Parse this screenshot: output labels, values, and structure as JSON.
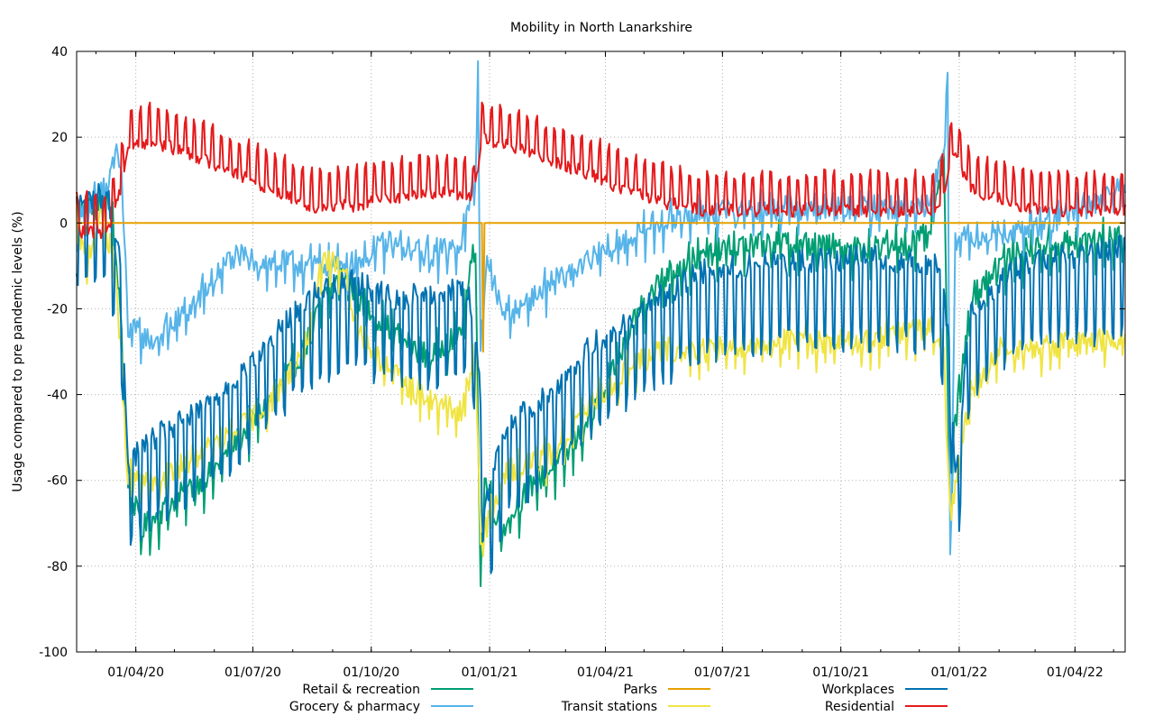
{
  "chart_data": {
    "type": "line",
    "title": "Mobility in North Lanarkshire",
    "xlabel": "",
    "ylabel": "Usage compared to pre pandemic levels (%)",
    "x_start": "2020-02-15",
    "x_end": "2022-05-10",
    "xlim": [
      "2020-02-15",
      "2022-05-10"
    ],
    "ylim": [
      -100,
      40
    ],
    "y_ticks": [
      -100,
      -80,
      -60,
      -40,
      -20,
      0,
      20,
      40
    ],
    "x_ticks": [
      {
        "date": "2020-04-01",
        "label": "01/04/20"
      },
      {
        "date": "2020-07-01",
        "label": "01/07/20"
      },
      {
        "date": "2020-10-01",
        "label": "01/10/20"
      },
      {
        "date": "2021-01-01",
        "label": "01/01/21"
      },
      {
        "date": "2021-04-01",
        "label": "01/04/21"
      },
      {
        "date": "2021-07-01",
        "label": "01/07/21"
      },
      {
        "date": "2021-10-01",
        "label": "01/10/21"
      },
      {
        "date": "2022-01-01",
        "label": "01/01/22"
      },
      {
        "date": "2022-04-01",
        "label": "01/04/22"
      }
    ],
    "grid": true,
    "legend_position": "bottom",
    "series": [
      {
        "name": "Retail & recreation",
        "color": "#009e73",
        "weekly_amplitude": 5,
        "noise": 3,
        "anchors": [
          [
            "2020-02-15",
            2
          ],
          [
            "2020-03-08",
            6
          ],
          [
            "2020-03-14",
            0
          ],
          [
            "2020-03-20",
            -20
          ],
          [
            "2020-03-26",
            -60
          ],
          [
            "2020-04-05",
            -72
          ],
          [
            "2020-05-01",
            -65
          ],
          [
            "2020-06-01",
            -58
          ],
          [
            "2020-06-22",
            -50
          ],
          [
            "2020-07-15",
            -42
          ],
          [
            "2020-08-10",
            -30
          ],
          [
            "2020-08-25",
            -18
          ],
          [
            "2020-09-10",
            -12
          ],
          [
            "2020-09-25",
            -20
          ],
          [
            "2020-10-15",
            -25
          ],
          [
            "2020-11-15",
            -32
          ],
          [
            "2020-12-10",
            -25
          ],
          [
            "2020-12-21",
            -5
          ],
          [
            "2020-12-25",
            -85
          ],
          [
            "2020-12-28",
            -60
          ],
          [
            "2021-01-10",
            -72
          ],
          [
            "2021-02-01",
            -62
          ],
          [
            "2021-03-01",
            -55
          ],
          [
            "2021-04-01",
            -40
          ],
          [
            "2021-04-27",
            -20
          ],
          [
            "2021-05-20",
            -12
          ],
          [
            "2021-06-15",
            -8
          ],
          [
            "2021-07-10",
            -6
          ],
          [
            "2021-08-10",
            -5
          ],
          [
            "2021-09-15",
            -6
          ],
          [
            "2021-11-01",
            -6
          ],
          [
            "2021-12-08",
            -4
          ],
          [
            "2021-12-16",
            8
          ],
          [
            "2021-12-20",
            15
          ],
          [
            "2021-12-25",
            -70
          ],
          [
            "2021-12-28",
            -50
          ],
          [
            "2022-01-10",
            -18
          ],
          [
            "2022-02-01",
            -10
          ],
          [
            "2022-03-01",
            -6
          ],
          [
            "2022-04-01",
            -5
          ],
          [
            "2022-05-10",
            -4
          ]
        ]
      },
      {
        "name": "Grocery & pharmacy",
        "color": "#56b4e9",
        "weekly_amplitude": 4,
        "noise": 3,
        "anchors": [
          [
            "2020-02-15",
            0
          ],
          [
            "2020-03-10",
            8
          ],
          [
            "2020-03-17",
            18
          ],
          [
            "2020-03-22",
            5
          ],
          [
            "2020-03-26",
            -25
          ],
          [
            "2020-04-15",
            -28
          ],
          [
            "2020-05-15",
            -20
          ],
          [
            "2020-06-15",
            -8
          ],
          [
            "2020-07-15",
            -10
          ],
          [
            "2020-08-15",
            -10
          ],
          [
            "2020-09-15",
            -10
          ],
          [
            "2020-10-15",
            -5
          ],
          [
            "2020-11-15",
            -8
          ],
          [
            "2020-12-10",
            -5
          ],
          [
            "2020-12-21",
            10
          ],
          [
            "2020-12-23",
            35
          ],
          [
            "2020-12-25",
            -30
          ],
          [
            "2020-12-29",
            -10
          ],
          [
            "2021-01-15",
            -22
          ],
          [
            "2021-02-15",
            -15
          ],
          [
            "2021-03-15",
            -10
          ],
          [
            "2021-04-15",
            -5
          ],
          [
            "2021-05-15",
            0
          ],
          [
            "2021-06-15",
            2
          ],
          [
            "2021-08-15",
            3
          ],
          [
            "2021-10-15",
            3
          ],
          [
            "2021-12-10",
            4
          ],
          [
            "2021-12-21",
            20
          ],
          [
            "2021-12-23",
            36
          ],
          [
            "2021-12-25",
            -80
          ],
          [
            "2021-12-29",
            -5
          ],
          [
            "2022-01-15",
            -3
          ],
          [
            "2022-02-15",
            -2
          ],
          [
            "2022-03-15",
            0
          ],
          [
            "2022-04-15",
            5
          ],
          [
            "2022-05-10",
            8
          ]
        ]
      },
      {
        "name": "Parks",
        "color": "#e69f00",
        "weekly_amplitude": 0,
        "noise": 0,
        "anchors": [
          [
            "2020-02-15",
            0
          ],
          [
            "2020-12-26",
            0
          ],
          [
            "2020-12-27",
            -30
          ],
          [
            "2020-12-28",
            0
          ],
          [
            "2022-05-10",
            0
          ]
        ]
      },
      {
        "name": "Transit stations",
        "color": "#f0e442",
        "weekly_amplitude": 4,
        "noise": 3,
        "anchors": [
          [
            "2020-02-15",
            0
          ],
          [
            "2020-02-22",
            -10
          ],
          [
            "2020-03-05",
            2
          ],
          [
            "2020-03-16",
            -10
          ],
          [
            "2020-03-26",
            -60
          ],
          [
            "2020-04-15",
            -62
          ],
          [
            "2020-05-15",
            -55
          ],
          [
            "2020-06-15",
            -50
          ],
          [
            "2020-07-15",
            -42
          ],
          [
            "2020-08-10",
            -30
          ],
          [
            "2020-08-25",
            -10
          ],
          [
            "2020-09-10",
            -10
          ],
          [
            "2020-09-20",
            -25
          ],
          [
            "2020-10-15",
            -35
          ],
          [
            "2020-11-15",
            -42
          ],
          [
            "2020-12-10",
            -45
          ],
          [
            "2020-12-21",
            -30
          ],
          [
            "2020-12-25",
            -75
          ],
          [
            "2021-01-15",
            -58
          ],
          [
            "2021-02-15",
            -55
          ],
          [
            "2021-03-15",
            -45
          ],
          [
            "2021-04-15",
            -35
          ],
          [
            "2021-05-15",
            -30
          ],
          [
            "2021-06-15",
            -30
          ],
          [
            "2021-08-15",
            -28
          ],
          [
            "2021-10-15",
            -28
          ],
          [
            "2021-12-10",
            -25
          ],
          [
            "2021-12-20",
            -30
          ],
          [
            "2021-12-25",
            -70
          ],
          [
            "2022-01-10",
            -40
          ],
          [
            "2022-02-01",
            -30
          ],
          [
            "2022-03-01",
            -30
          ],
          [
            "2022-04-01",
            -28
          ],
          [
            "2022-05-10",
            -27
          ]
        ]
      },
      {
        "name": "Workplaces",
        "color": "#0072b2",
        "weekly_amplitude": 14,
        "noise": 3,
        "anchors": [
          [
            "2020-02-15",
            0
          ],
          [
            "2020-03-10",
            2
          ],
          [
            "2020-03-20",
            -15
          ],
          [
            "2020-03-26",
            -60
          ],
          [
            "2020-04-15",
            -55
          ],
          [
            "2020-05-15",
            -50
          ],
          [
            "2020-06-15",
            -42
          ],
          [
            "2020-07-15",
            -32
          ],
          [
            "2020-08-15",
            -22
          ],
          [
            "2020-09-15",
            -18
          ],
          [
            "2020-10-15",
            -22
          ],
          [
            "2020-11-15",
            -22
          ],
          [
            "2020-12-15",
            -20
          ],
          [
            "2020-12-24",
            -40
          ],
          [
            "2020-12-28",
            -70
          ],
          [
            "2021-01-15",
            -52
          ],
          [
            "2021-02-15",
            -45
          ],
          [
            "2021-03-15",
            -35
          ],
          [
            "2021-04-15",
            -28
          ],
          [
            "2021-05-15",
            -22
          ],
          [
            "2021-06-15",
            -16
          ],
          [
            "2021-08-15",
            -14
          ],
          [
            "2021-10-15",
            -13
          ],
          [
            "2021-12-15",
            -14
          ],
          [
            "2021-12-24",
            -30
          ],
          [
            "2021-12-29",
            -65
          ],
          [
            "2022-01-10",
            -25
          ],
          [
            "2022-02-15",
            -15
          ],
          [
            "2022-03-15",
            -13
          ],
          [
            "2022-04-15",
            -12
          ],
          [
            "2022-05-10",
            -10
          ]
        ]
      },
      {
        "name": "Residential",
        "color": "#e41a1c",
        "weekly_amplitude": 6,
        "noise": 1.5,
        "anchors": [
          [
            "2020-02-15",
            0
          ],
          [
            "2020-03-10",
            0
          ],
          [
            "2020-03-20",
            10
          ],
          [
            "2020-03-26",
            20
          ],
          [
            "2020-04-15",
            21
          ],
          [
            "2020-05-15",
            18
          ],
          [
            "2020-06-15",
            14
          ],
          [
            "2020-07-15",
            10
          ],
          [
            "2020-08-15",
            6
          ],
          [
            "2020-09-15",
            6
          ],
          [
            "2020-10-15",
            8
          ],
          [
            "2020-11-15",
            9
          ],
          [
            "2020-12-10",
            9
          ],
          [
            "2020-12-20",
            8
          ],
          [
            "2020-12-26",
            22
          ],
          [
            "2021-01-15",
            20
          ],
          [
            "2021-02-15",
            17
          ],
          [
            "2021-03-15",
            14
          ],
          [
            "2021-04-15",
            10
          ],
          [
            "2021-05-15",
            7
          ],
          [
            "2021-06-15",
            5
          ],
          [
            "2021-08-15",
            5
          ],
          [
            "2021-10-15",
            5
          ],
          [
            "2021-12-15",
            5
          ],
          [
            "2021-12-28",
            18
          ],
          [
            "2022-01-10",
            10
          ],
          [
            "2022-02-15",
            6
          ],
          [
            "2022-03-15",
            5
          ],
          [
            "2022-04-15",
            5
          ],
          [
            "2022-05-10",
            5
          ]
        ]
      }
    ]
  }
}
